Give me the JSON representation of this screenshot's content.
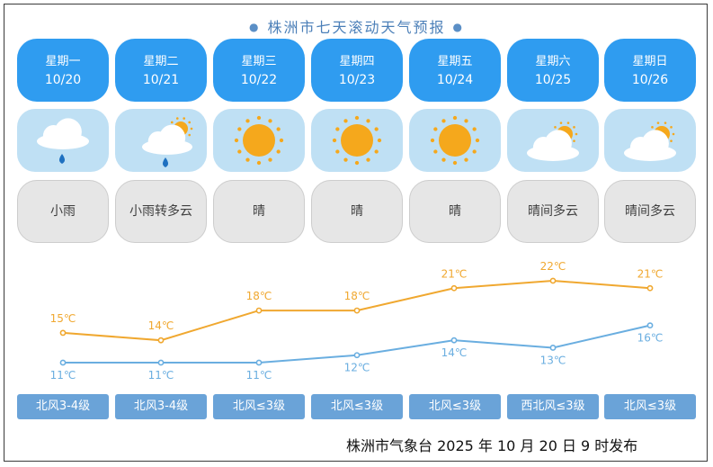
{
  "title": "株洲市七天滚动天气预报",
  "colors": {
    "day_card": "#2f9cf0",
    "icon_card": "#bfe0f4",
    "condition_card": "#e6e6e6",
    "wind_tag": "#6aa3d8",
    "high_line": "#f0a830",
    "low_line": "#6aaee0",
    "sun": "#f5a81c"
  },
  "days": [
    {
      "name": "星期一",
      "date": "10/20",
      "icon": "rain-icon",
      "condition": "小雨",
      "wind": "北风3-4级"
    },
    {
      "name": "星期二",
      "date": "10/21",
      "icon": "rain-partly-cloudy-icon",
      "condition": "小雨转多云",
      "wind": "北风3-4级"
    },
    {
      "name": "星期三",
      "date": "10/22",
      "icon": "sun-icon",
      "condition": "晴",
      "wind": "北风≤3级"
    },
    {
      "name": "星期四",
      "date": "10/23",
      "icon": "sun-icon",
      "condition": "晴",
      "wind": "北风≤3级"
    },
    {
      "name": "星期五",
      "date": "10/24",
      "icon": "sun-icon",
      "condition": "晴",
      "wind": "北风≤3级"
    },
    {
      "name": "星期六",
      "date": "10/25",
      "icon": "partly-cloudy-icon",
      "condition": "晴间多云",
      "wind": "西北风≤3级"
    },
    {
      "name": "星期日",
      "date": "10/26",
      "icon": "partly-cloudy-icon",
      "condition": "晴间多云",
      "wind": "北风≤3级"
    }
  ],
  "chart_data": {
    "type": "line",
    "categories": [
      "10/20",
      "10/21",
      "10/22",
      "10/23",
      "10/24",
      "10/25",
      "10/26"
    ],
    "series": [
      {
        "values": [
          15,
          14,
          18,
          18,
          21,
          22,
          21
        ],
        "labels": [
          "15℃",
          "14℃",
          "18℃",
          "18℃",
          "21℃",
          "22℃",
          "21℃"
        ]
      },
      {
        "values": [
          11,
          11,
          11,
          12,
          14,
          13,
          16
        ],
        "labels": [
          "11℃",
          "11℃",
          "11℃",
          "12℃",
          "14℃",
          "13℃",
          "16℃"
        ]
      }
    ],
    "unit": "℃"
  },
  "footer": "株洲市气象台 2025 年 10 月 20 日 9 时发布"
}
